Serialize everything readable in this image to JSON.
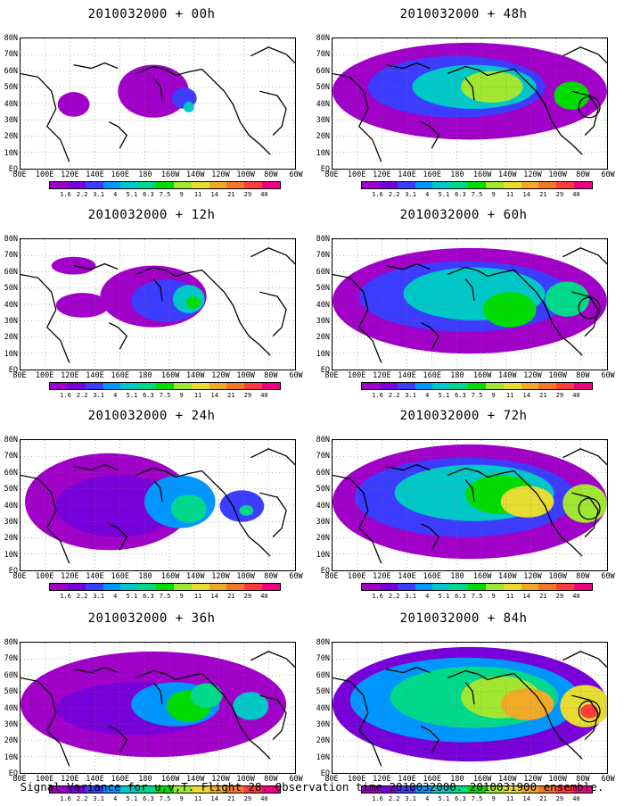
{
  "legend_levels": [
    "1.6",
    "2.2",
    "3.1",
    "4",
    "5.1",
    "6.3",
    "7.5",
    "9",
    "11",
    "14",
    "21",
    "29",
    "40"
  ],
  "legend_colors": [
    "#a000c8",
    "#7800d8",
    "#3c3cff",
    "#0096ff",
    "#00c8c8",
    "#00d88c",
    "#00dc00",
    "#a0e632",
    "#e6dc32",
    "#f0aa28",
    "#f07828",
    "#ff3c3c",
    "#f00082"
  ],
  "lat_labels": [
    "80N",
    "70N",
    "60N",
    "50N",
    "40N",
    "30N",
    "20N",
    "10N",
    "EQ"
  ],
  "lon_labels": [
    "80E",
    "100E",
    "120E",
    "140E",
    "160E",
    "180",
    "160W",
    "140W",
    "120W",
    "100W",
    "80W",
    "60W"
  ],
  "panels": [
    {
      "title": "2010032000 + 00h",
      "level": 0,
      "circle": false
    },
    {
      "title": "2010032000 + 12h",
      "level": 1,
      "circle": false
    },
    {
      "title": "2010032000 + 24h",
      "level": 2,
      "circle": false
    },
    {
      "title": "2010032000 + 36h",
      "level": 3,
      "circle": false
    },
    {
      "title": "2010032000 + 48h",
      "level": 4,
      "circle": true
    },
    {
      "title": "2010032000 + 60h",
      "level": 5,
      "circle": true
    },
    {
      "title": "2010032000 + 72h",
      "level": 6,
      "circle": true
    },
    {
      "title": "2010032000 + 84h",
      "level": 7,
      "circle": true
    }
  ],
  "caption": "Signal Variance for u,v,T. Flight 28. Observation time 2010032000. 2010031900 ensemble."
}
